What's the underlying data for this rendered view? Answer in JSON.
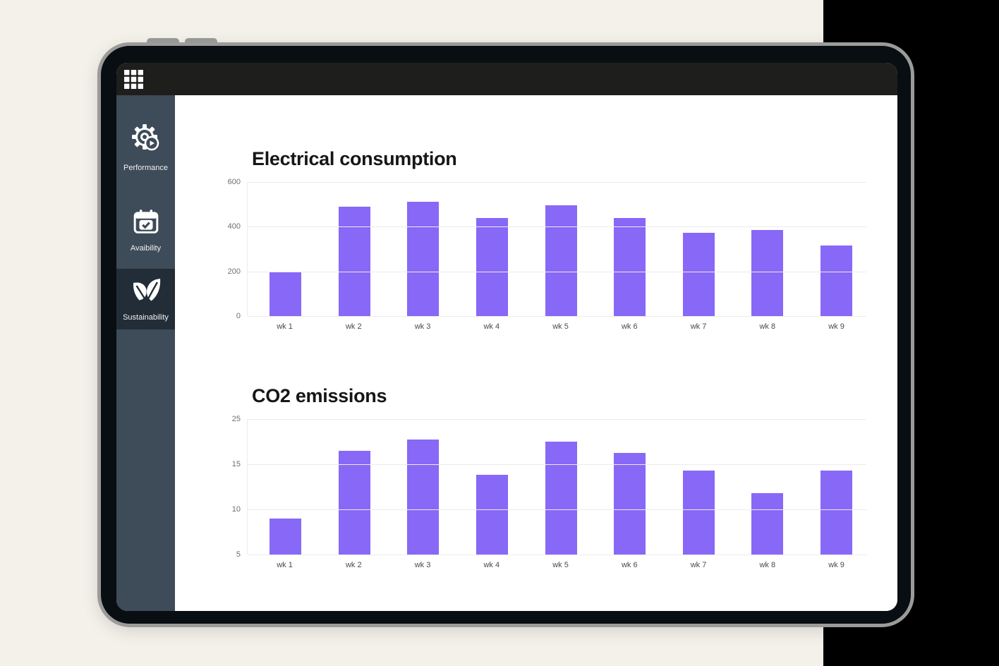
{
  "page": {
    "background_color": "#f4f0ea",
    "right_panel_color": "#000000"
  },
  "app": {
    "topbar": {
      "launcher_icon": "grid-icon",
      "background_color": "#1e1e1c"
    },
    "sidebar": {
      "background_color": "#3e4b59",
      "selected_background_color": "#232d37",
      "items": [
        {
          "label": "Performance",
          "icon": "gear-play-icon",
          "selected": false
        },
        {
          "label": "Avaibility",
          "icon": "calendar-check-icon",
          "selected": false
        },
        {
          "label": "Sustainability",
          "icon": "leaves-icon",
          "selected": true
        }
      ]
    }
  },
  "chart_data": [
    {
      "type": "bar",
      "title": "Electrical consumption",
      "categories": [
        "wk 1",
        "wk 2",
        "wk 3",
        "wk 4",
        "wk 5",
        "wk 6",
        "wk 7",
        "wk 8",
        "wk 9"
      ],
      "values": [
        200,
        488,
        512,
        440,
        496,
        438,
        374,
        386,
        317
      ],
      "yticks": [
        600,
        400,
        200,
        0
      ],
      "ylim": [
        0,
        600
      ],
      "xlabel": "",
      "ylabel": "",
      "grid": "horizontal, equally spaced ticks",
      "legend": "none",
      "bar_color": "#8768f7"
    },
    {
      "type": "bar",
      "title": "CO2 emissions",
      "categories": [
        "wk 1",
        "wk 2",
        "wk 3",
        "wk 4",
        "wk 5",
        "wk 6",
        "wk 7",
        "wk 8",
        "wk 9"
      ],
      "values": [
        9,
        18,
        20.5,
        13.8,
        20,
        17.5,
        14.3,
        11.8,
        14.3
      ],
      "yticks": [
        25,
        15,
        10,
        5
      ],
      "ylim": [
        5,
        25
      ],
      "xlabel": "",
      "ylabel": "",
      "grid": "horizontal, equally spaced ticks (non-linear: 5,10,15,25)",
      "legend": "none",
      "bar_color": "#8768f7"
    }
  ]
}
